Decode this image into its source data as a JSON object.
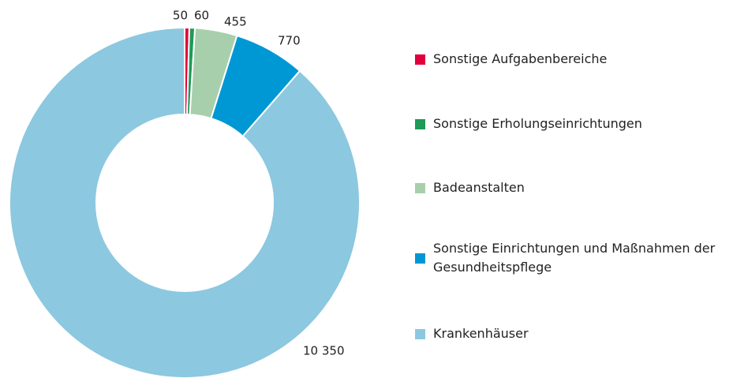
{
  "chart_data": {
    "type": "donut",
    "categories": [
      "Sonstige Aufgabenbereiche",
      "Sonstige Erholungseinrichtungen",
      "Badeanstalten",
      "Sonstige Einrichtungen und Maßnahmen der Gesundheitspflege",
      "Krankenhäuser"
    ],
    "values": [
      50,
      60,
      455,
      770,
      10350
    ],
    "value_labels": [
      "50",
      "60",
      "455",
      "770",
      "10 350"
    ],
    "colors": [
      "#e2003c",
      "#1f9a57",
      "#a8cfac",
      "#0098d4",
      "#8cc8e0"
    ]
  }
}
